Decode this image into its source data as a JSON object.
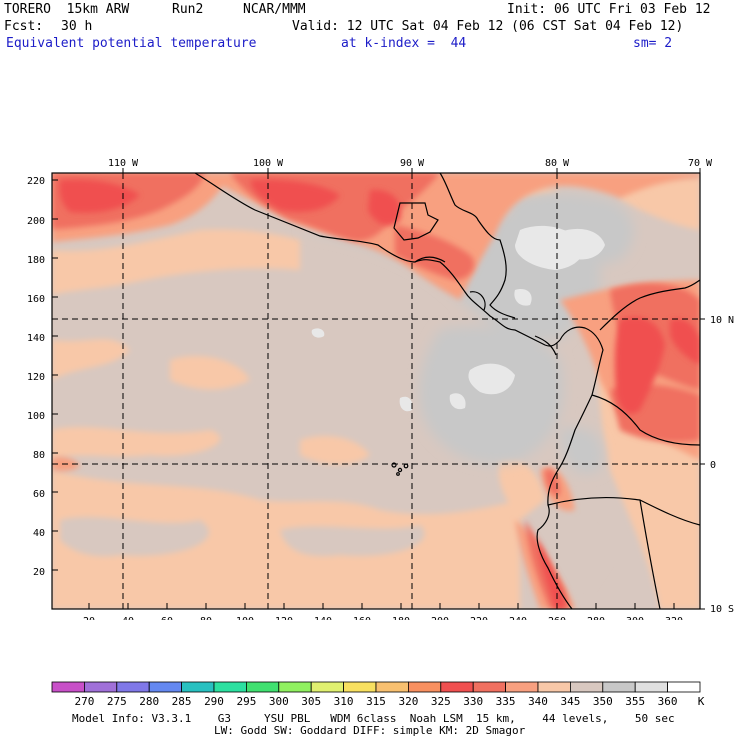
{
  "header": {
    "model": "TORERO  15km ARW",
    "run": "Run2",
    "org": "NCAR/MMM",
    "init": "Init: 06 UTC Fri 03 Feb 12",
    "fcst_label": "Fcst:",
    "fcst_value": "30 h",
    "valid": "Valid: 12 UTC Sat 04 Feb 12 (06 CST Sat 04 Feb 12)",
    "field": "Equivalent potential temperature",
    "level": "at k-index =  44",
    "smoothing": "sm= 2"
  },
  "map": {
    "top_longitudes": [
      "110 W",
      "100 W",
      "90 W",
      "80 W",
      "70 W"
    ],
    "right_latitudes": [
      "10 N",
      "0",
      "10 S"
    ],
    "left_ticks": [
      "220",
      "200",
      "180",
      "160",
      "140",
      "120",
      "100",
      "80",
      "60",
      "40",
      "20"
    ],
    "bottom_ticks": [
      "20",
      "40",
      "60",
      "80",
      "100",
      "120",
      "140",
      "160",
      "180",
      "200",
      "220",
      "240",
      "260",
      "280",
      "300",
      "320"
    ]
  },
  "colorbar": {
    "labels": [
      "270",
      "275",
      "280",
      "285",
      "290",
      "295",
      "300",
      "305",
      "310",
      "315",
      "320",
      "325",
      "330",
      "335",
      "340",
      "345",
      "350",
      "355",
      "360"
    ],
    "unit": "K",
    "colors": [
      "#c850c8",
      "#a070d8",
      "#8078e8",
      "#6488f0",
      "#28c0c0",
      "#2ce0a0",
      "#40e070",
      "#90f060",
      "#e0f070",
      "#f8e060",
      "#f8c070",
      "#f89060",
      "#f05050",
      "#f07060",
      "#f8a080",
      "#f8c8a8",
      "#d8c8c0",
      "#c8c8c8",
      "#e0e0e0",
      "#ffffff"
    ]
  },
  "footer": {
    "line1": "Model Info: V3.3.1    G3     YSU PBL   WDM 6class  Noah LSM  15 km,    44 levels,    50 sec",
    "line2": "LW: Godd SW: Goddard DIFF: simple KM: 2D Smagor"
  }
}
